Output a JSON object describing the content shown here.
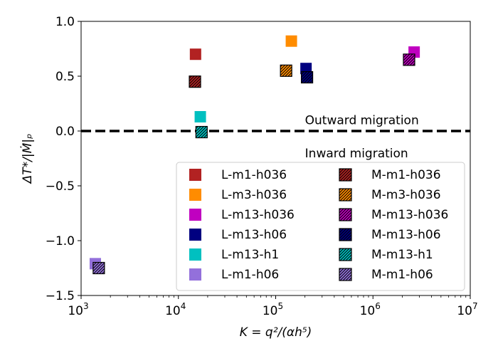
{
  "chart_data": {
    "type": "scatter",
    "xscale": "log",
    "xlim": [
      1000,
      10000000
    ],
    "ylim": [
      -1.5,
      1.0
    ],
    "xlabel": "K = q²/(αh⁵)",
    "ylabel": "ΔT*/|Ṁ|ₚ",
    "x_ticks": [
      {
        "value": 1000,
        "base": "10",
        "exp": "3"
      },
      {
        "value": 10000,
        "base": "10",
        "exp": "4"
      },
      {
        "value": 100000,
        "base": "10",
        "exp": "5"
      },
      {
        "value": 1000000,
        "base": "10",
        "exp": "6"
      },
      {
        "value": 10000000,
        "base": "10",
        "exp": "7"
      }
    ],
    "y_ticks": [
      {
        "value": 1.0,
        "label": "1.0"
      },
      {
        "value": 0.5,
        "label": "0.5"
      },
      {
        "value": 0.0,
        "label": "0.0"
      },
      {
        "value": -0.5,
        "label": "−0.5"
      },
      {
        "value": -1.0,
        "label": "−1.0"
      },
      {
        "value": -1.5,
        "label": "−1.5"
      }
    ],
    "reference_line": {
      "y": 0.0,
      "style": "dashed",
      "color": "#000000"
    },
    "annotations": [
      {
        "text": "Outward migration",
        "x": 200000,
        "y": 0.1
      },
      {
        "text": "Inward migration",
        "x": 200000,
        "y": -0.2
      }
    ],
    "legend_position": "lower-right",
    "series": [
      {
        "name": "L-m1-h036",
        "color": "#b22222",
        "hatched": false,
        "x": 15000,
        "y": 0.7
      },
      {
        "name": "L-m3-h036",
        "color": "#ff8c00",
        "hatched": false,
        "x": 145000,
        "y": 0.82
      },
      {
        "name": "L-m13-h036",
        "color": "#c000c0",
        "hatched": false,
        "x": 2650000,
        "y": 0.72
      },
      {
        "name": "L-m13-h06",
        "color": "#000080",
        "hatched": false,
        "x": 205000,
        "y": 0.57
      },
      {
        "name": "L-m13-h1",
        "color": "#00c0c0",
        "hatched": false,
        "x": 16800,
        "y": 0.13
      },
      {
        "name": "L-m1-h06",
        "color": "#9370db",
        "hatched": false,
        "x": 1400,
        "y": -1.21
      },
      {
        "name": "M-m1-h036",
        "color": "#b22222",
        "hatched": true,
        "x": 14800,
        "y": 0.45
      },
      {
        "name": "M-m3-h036",
        "color": "#ff8c00",
        "hatched": true,
        "x": 128000,
        "y": 0.55
      },
      {
        "name": "M-m13-h036",
        "color": "#c000c0",
        "hatched": true,
        "x": 2350000,
        "y": 0.65
      },
      {
        "name": "M-m13-h06",
        "color": "#000080",
        "hatched": true,
        "x": 210000,
        "y": 0.49
      },
      {
        "name": "M-m13-h1",
        "color": "#00c0c0",
        "hatched": true,
        "x": 17300,
        "y": -0.01
      },
      {
        "name": "M-m1-h06",
        "color": "#9370db",
        "hatched": true,
        "x": 1520,
        "y": -1.25
      }
    ]
  }
}
